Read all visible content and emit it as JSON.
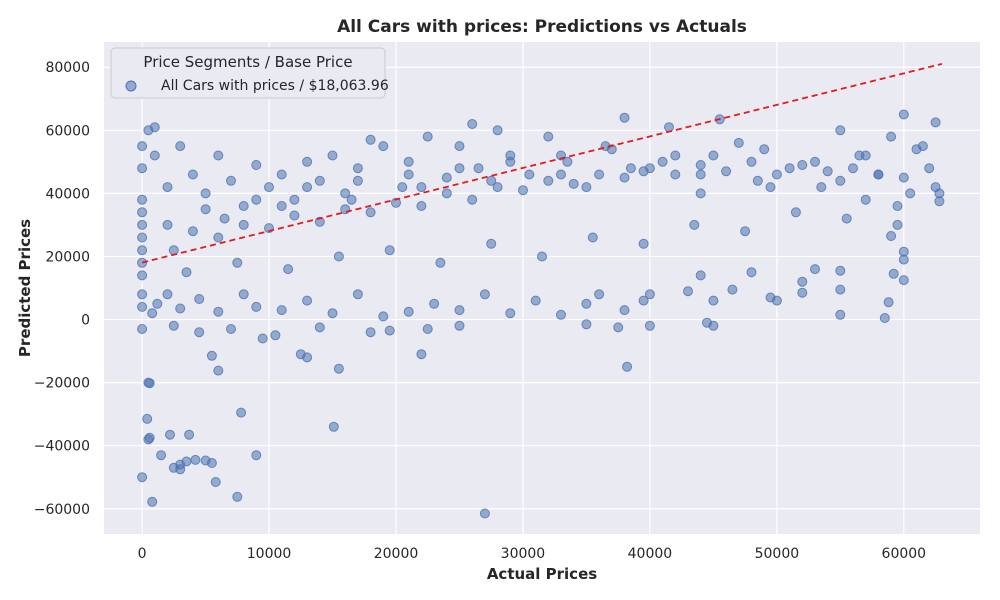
{
  "chart_data": {
    "type": "scatter",
    "title": "All Cars with prices: Predictions vs Actuals",
    "xlabel": "Actual Prices",
    "ylabel": "Predicted Prices",
    "xlim": [
      -3000,
      66000
    ],
    "ylim": [
      -68000,
      88000
    ],
    "xticks": [
      0,
      10000,
      20000,
      30000,
      40000,
      50000,
      60000
    ],
    "yticks": [
      -60000,
      -40000,
      -20000,
      0,
      20000,
      40000,
      60000,
      80000
    ],
    "xtick_labels": [
      "0",
      "10000",
      "20000",
      "30000",
      "40000",
      "50000",
      "60000"
    ],
    "ytick_labels": [
      "−60000",
      "−40000",
      "−20000",
      "0",
      "20000",
      "40000",
      "60000",
      "80000"
    ],
    "grid": true,
    "background": "#eaeaf2",
    "legend": {
      "title": "Price Segments / Base Price",
      "placement": "top-left",
      "entries": [
        "All Cars with prices / $18,063.96"
      ]
    },
    "series": [
      {
        "name": "All Cars with prices / $18,063.96",
        "color": "#4c72b0",
        "opacity": 0.55,
        "points": [
          [
            0,
            -50000
          ],
          [
            800,
            -57800
          ],
          [
            500,
            -38000
          ],
          [
            400,
            -31500
          ],
          [
            600,
            -20200
          ],
          [
            1500,
            -43000
          ],
          [
            2200,
            -36500
          ],
          [
            2500,
            -47000
          ],
          [
            3000,
            -46000
          ],
          [
            3700,
            -36500
          ],
          [
            4200,
            -44500
          ],
          [
            5000,
            -44700
          ],
          [
            5500,
            -45500
          ],
          [
            5800,
            -51500
          ],
          [
            7500,
            -56200
          ],
          [
            7800,
            -29500
          ],
          [
            9000,
            -43000
          ],
          [
            15100,
            -34000
          ],
          [
            27000,
            -61500
          ],
          [
            3000,
            -47500
          ],
          [
            3500,
            -45000
          ],
          [
            600,
            -37500
          ],
          [
            5500,
            -11500
          ],
          [
            6000,
            -16200
          ],
          [
            12500,
            -11000
          ],
          [
            13000,
            -12000
          ],
          [
            15500,
            -15600
          ],
          [
            22000,
            -11000
          ],
          [
            38200,
            -15000
          ],
          [
            500,
            -20000
          ],
          [
            2500,
            -2000
          ],
          [
            4500,
            -4000
          ],
          [
            7000,
            -3000
          ],
          [
            9500,
            -6000
          ],
          [
            10500,
            -5000
          ],
          [
            14000,
            -2500
          ],
          [
            18000,
            -4000
          ],
          [
            19500,
            -3500
          ],
          [
            22500,
            -3000
          ],
          [
            25000,
            -2000
          ],
          [
            35000,
            -1500
          ],
          [
            37500,
            -2500
          ],
          [
            40000,
            -2000
          ],
          [
            44500,
            -1000
          ],
          [
            45000,
            -2000
          ],
          [
            800,
            2000
          ],
          [
            1200,
            5000
          ],
          [
            2000,
            8000
          ],
          [
            3000,
            3500
          ],
          [
            4500,
            6500
          ],
          [
            6000,
            2500
          ],
          [
            8000,
            8000
          ],
          [
            9000,
            4000
          ],
          [
            11000,
            3000
          ],
          [
            13000,
            6000
          ],
          [
            15000,
            2000
          ],
          [
            17000,
            8000
          ],
          [
            19000,
            1000
          ],
          [
            21000,
            2500
          ],
          [
            23000,
            5000
          ],
          [
            25000,
            3000
          ],
          [
            27000,
            8000
          ],
          [
            29000,
            2000
          ],
          [
            31000,
            6000
          ],
          [
            33000,
            1500
          ],
          [
            35000,
            5000
          ],
          [
            36000,
            8000
          ],
          [
            38000,
            3000
          ],
          [
            39500,
            6000
          ],
          [
            40000,
            8000
          ],
          [
            43000,
            9000
          ],
          [
            44000,
            14000
          ],
          [
            45000,
            6000
          ],
          [
            46500,
            9500
          ],
          [
            48000,
            15000
          ],
          [
            49500,
            7000
          ],
          [
            50000,
            6000
          ],
          [
            52000,
            8500
          ],
          [
            52000,
            12000
          ],
          [
            53000,
            16000
          ],
          [
            55000,
            1500
          ],
          [
            55000,
            9500
          ],
          [
            55000,
            15500
          ],
          [
            58500,
            500
          ],
          [
            58800,
            5500
          ],
          [
            59000,
            26500
          ],
          [
            60000,
            12500
          ],
          [
            60000,
            19000
          ],
          [
            60000,
            21500
          ],
          [
            59200,
            14500
          ],
          [
            59500,
            30000
          ],
          [
            58000,
            46000
          ],
          [
            57000,
            38000
          ],
          [
            62500,
            62500
          ],
          [
            62800,
            40000
          ],
          [
            61500,
            55000
          ],
          [
            60000,
            65000
          ],
          [
            59000,
            58000
          ],
          [
            56500,
            52000
          ],
          [
            55000,
            60000
          ],
          [
            53500,
            42000
          ],
          [
            51000,
            48000
          ],
          [
            48500,
            44000
          ],
          [
            47000,
            56000
          ],
          [
            45500,
            63500
          ],
          [
            44000,
            46000
          ],
          [
            42000,
            52000
          ],
          [
            41500,
            61000
          ],
          [
            39500,
            47000
          ],
          [
            38000,
            64000
          ],
          [
            36500,
            55000
          ],
          [
            35000,
            42000
          ],
          [
            33500,
            50000
          ],
          [
            32000,
            58000
          ],
          [
            30500,
            46000
          ],
          [
            29000,
            52000
          ],
          [
            28000,
            60000
          ],
          [
            26500,
            48000
          ],
          [
            26000,
            62000
          ],
          [
            25000,
            55000
          ],
          [
            24000,
            45000
          ],
          [
            22500,
            58000
          ],
          [
            21000,
            50000
          ],
          [
            20500,
            42000
          ],
          [
            19000,
            55000
          ],
          [
            18000,
            57000
          ],
          [
            17000,
            48000
          ],
          [
            16000,
            40000
          ],
          [
            15000,
            52000
          ],
          [
            14000,
            44000
          ],
          [
            13000,
            50000
          ],
          [
            12000,
            38000
          ],
          [
            11000,
            46000
          ],
          [
            10000,
            42000
          ],
          [
            9000,
            49000
          ],
          [
            8000,
            36000
          ],
          [
            7000,
            44000
          ],
          [
            6000,
            52000
          ],
          [
            5000,
            40000
          ],
          [
            4000,
            46000
          ],
          [
            3000,
            55000
          ],
          [
            2000,
            42000
          ],
          [
            1000,
            52000
          ],
          [
            500,
            60000
          ],
          [
            1000,
            61000
          ],
          [
            0,
            30000
          ],
          [
            0,
            34000
          ],
          [
            0,
            38000
          ],
          [
            0,
            26000
          ],
          [
            0,
            22000
          ],
          [
            0,
            18000
          ],
          [
            0,
            14000
          ],
          [
            0,
            8000
          ],
          [
            0,
            4000
          ],
          [
            0,
            -3000
          ],
          [
            0,
            48000
          ],
          [
            0,
            55000
          ],
          [
            2500,
            22000
          ],
          [
            4000,
            28000
          ],
          [
            6000,
            26000
          ],
          [
            8000,
            30000
          ],
          [
            10000,
            29000
          ],
          [
            12000,
            33000
          ],
          [
            14000,
            31000
          ],
          [
            16000,
            35000
          ],
          [
            18000,
            34000
          ],
          [
            20000,
            37000
          ],
          [
            22000,
            36000
          ],
          [
            24000,
            40000
          ],
          [
            26000,
            38000
          ],
          [
            28000,
            42000
          ],
          [
            30000,
            41000
          ],
          [
            32000,
            44000
          ],
          [
            34000,
            43000
          ],
          [
            36000,
            46000
          ],
          [
            38000,
            45000
          ],
          [
            40000,
            48000
          ],
          [
            42000,
            46000
          ],
          [
            44000,
            49000
          ],
          [
            46000,
            47000
          ],
          [
            48000,
            50000
          ],
          [
            50000,
            46000
          ],
          [
            52000,
            49000
          ],
          [
            54000,
            47000
          ],
          [
            56000,
            48000
          ],
          [
            58000,
            46000
          ],
          [
            60000,
            45000
          ],
          [
            62000,
            48000
          ],
          [
            3500,
            15000
          ],
          [
            7500,
            18000
          ],
          [
            11500,
            16000
          ],
          [
            15500,
            20000
          ],
          [
            19500,
            22000
          ],
          [
            23500,
            18000
          ],
          [
            27500,
            24000
          ],
          [
            31500,
            20000
          ],
          [
            35500,
            26000
          ],
          [
            39500,
            24000
          ],
          [
            43500,
            30000
          ],
          [
            47500,
            28000
          ],
          [
            51500,
            34000
          ],
          [
            55500,
            32000
          ],
          [
            59500,
            36000
          ],
          [
            62500,
            42000
          ],
          [
            5000,
            35000
          ],
          [
            9000,
            38000
          ],
          [
            13000,
            42000
          ],
          [
            17000,
            44000
          ],
          [
            21000,
            46000
          ],
          [
            25000,
            48000
          ],
          [
            29000,
            50000
          ],
          [
            33000,
            52000
          ],
          [
            37000,
            54000
          ],
          [
            41000,
            50000
          ],
          [
            45000,
            52000
          ],
          [
            49000,
            54000
          ],
          [
            53000,
            50000
          ],
          [
            57000,
            52000
          ],
          [
            61000,
            54000
          ],
          [
            2000,
            30000
          ],
          [
            6500,
            32000
          ],
          [
            11000,
            36000
          ],
          [
            16500,
            38000
          ],
          [
            22000,
            42000
          ],
          [
            27500,
            44000
          ],
          [
            33000,
            46000
          ],
          [
            38500,
            48000
          ],
          [
            44000,
            40000
          ],
          [
            49500,
            42000
          ],
          [
            55000,
            44000
          ],
          [
            60500,
            40000
          ],
          [
            62800,
            37500
          ]
        ]
      }
    ],
    "reference_line": {
      "style": "dashed",
      "color": "#e41a1c",
      "from": [
        0,
        18064
      ],
      "to": [
        63000,
        81064
      ]
    }
  }
}
